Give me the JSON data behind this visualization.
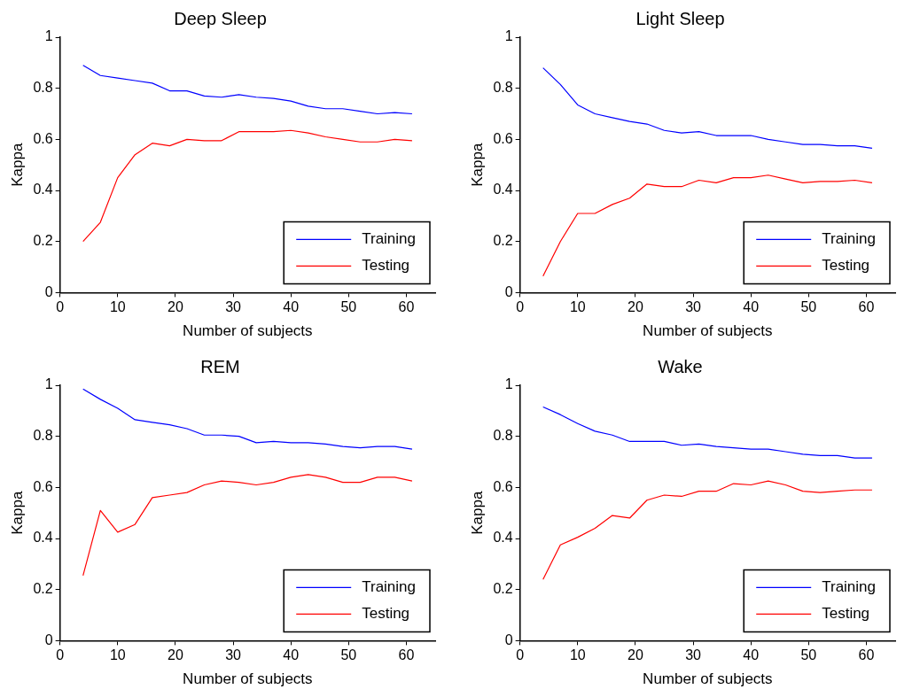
{
  "chart_data": [
    {
      "type": "line",
      "title": "Deep Sleep",
      "xlabel": "Number of subjects",
      "ylabel": "Kappa",
      "x": [
        4,
        7,
        10,
        13,
        16,
        19,
        22,
        25,
        28,
        31,
        34,
        37,
        40,
        43,
        46,
        49,
        52,
        55,
        58,
        61
      ],
      "series": [
        {
          "name": "Training",
          "color": "#0000ff",
          "values": [
            0.89,
            0.85,
            0.84,
            0.83,
            0.82,
            0.79,
            0.79,
            0.77,
            0.765,
            0.775,
            0.765,
            0.76,
            0.75,
            0.73,
            0.72,
            0.72,
            0.71,
            0.7,
            0.705,
            0.7
          ]
        },
        {
          "name": "Testing",
          "color": "#ff0000",
          "values": [
            0.2,
            0.275,
            0.45,
            0.54,
            0.585,
            0.575,
            0.6,
            0.595,
            0.595,
            0.63,
            0.63,
            0.63,
            0.635,
            0.625,
            0.61,
            0.6,
            0.59,
            0.59,
            0.6,
            0.595
          ]
        }
      ],
      "xlim": [
        0,
        65
      ],
      "ylim": [
        0,
        1
      ],
      "xticks": [
        0,
        10,
        20,
        30,
        40,
        50,
        60
      ],
      "yticks": [
        0,
        0.2,
        0.4,
        0.6,
        0.8,
        1
      ],
      "legend": "bottom right"
    },
    {
      "type": "line",
      "title": "Light Sleep",
      "xlabel": "Number of subjects",
      "ylabel": "Kappa",
      "x": [
        4,
        7,
        10,
        13,
        16,
        19,
        22,
        25,
        28,
        31,
        34,
        37,
        40,
        43,
        46,
        49,
        52,
        55,
        58,
        61
      ],
      "series": [
        {
          "name": "Training",
          "color": "#0000ff",
          "values": [
            0.88,
            0.815,
            0.735,
            0.7,
            0.685,
            0.67,
            0.66,
            0.635,
            0.625,
            0.63,
            0.615,
            0.615,
            0.615,
            0.6,
            0.59,
            0.58,
            0.58,
            0.575,
            0.575,
            0.565
          ]
        },
        {
          "name": "Testing",
          "color": "#ff0000",
          "values": [
            0.065,
            0.2,
            0.31,
            0.31,
            0.345,
            0.37,
            0.425,
            0.415,
            0.415,
            0.44,
            0.43,
            0.45,
            0.45,
            0.46,
            0.445,
            0.43,
            0.435,
            0.435,
            0.44,
            0.43
          ]
        }
      ],
      "xlim": [
        0,
        65
      ],
      "ylim": [
        0,
        1
      ],
      "xticks": [
        0,
        10,
        20,
        30,
        40,
        50,
        60
      ],
      "yticks": [
        0,
        0.2,
        0.4,
        0.6,
        0.8,
        1
      ],
      "legend": "bottom right"
    },
    {
      "type": "line",
      "title": "REM",
      "xlabel": "Number of subjects",
      "ylabel": "Kappa",
      "x": [
        4,
        7,
        10,
        13,
        16,
        19,
        22,
        25,
        28,
        31,
        34,
        37,
        40,
        43,
        46,
        49,
        52,
        55,
        58,
        61
      ],
      "series": [
        {
          "name": "Training",
          "color": "#0000ff",
          "values": [
            0.985,
            0.945,
            0.91,
            0.865,
            0.855,
            0.845,
            0.83,
            0.805,
            0.805,
            0.8,
            0.775,
            0.78,
            0.775,
            0.775,
            0.77,
            0.76,
            0.755,
            0.76,
            0.76,
            0.75
          ]
        },
        {
          "name": "Testing",
          "color": "#ff0000",
          "values": [
            0.255,
            0.51,
            0.425,
            0.455,
            0.56,
            0.57,
            0.58,
            0.61,
            0.625,
            0.62,
            0.61,
            0.62,
            0.64,
            0.65,
            0.64,
            0.62,
            0.62,
            0.64,
            0.64,
            0.625
          ]
        }
      ],
      "xlim": [
        0,
        65
      ],
      "ylim": [
        0,
        1
      ],
      "xticks": [
        0,
        10,
        20,
        30,
        40,
        50,
        60
      ],
      "yticks": [
        0,
        0.2,
        0.4,
        0.6,
        0.8,
        1
      ],
      "legend": "bottom right"
    },
    {
      "type": "line",
      "title": "Wake",
      "xlabel": "Number of subjects",
      "ylabel": "Kappa",
      "x": [
        4,
        7,
        10,
        13,
        16,
        19,
        22,
        25,
        28,
        31,
        34,
        37,
        40,
        43,
        46,
        49,
        52,
        55,
        58,
        61
      ],
      "series": [
        {
          "name": "Training",
          "color": "#0000ff",
          "values": [
            0.915,
            0.885,
            0.85,
            0.82,
            0.805,
            0.78,
            0.78,
            0.78,
            0.765,
            0.77,
            0.76,
            0.755,
            0.75,
            0.75,
            0.74,
            0.73,
            0.725,
            0.725,
            0.715,
            0.715
          ]
        },
        {
          "name": "Testing",
          "color": "#ff0000",
          "values": [
            0.24,
            0.375,
            0.405,
            0.44,
            0.49,
            0.48,
            0.55,
            0.57,
            0.565,
            0.585,
            0.585,
            0.615,
            0.61,
            0.625,
            0.61,
            0.585,
            0.58,
            0.585,
            0.59,
            0.59
          ]
        }
      ],
      "xlim": [
        0,
        65
      ],
      "ylim": [
        0,
        1
      ],
      "xticks": [
        0,
        10,
        20,
        30,
        40,
        50,
        60
      ],
      "yticks": [
        0,
        0.2,
        0.4,
        0.6,
        0.8,
        1
      ],
      "legend": "bottom right"
    }
  ]
}
